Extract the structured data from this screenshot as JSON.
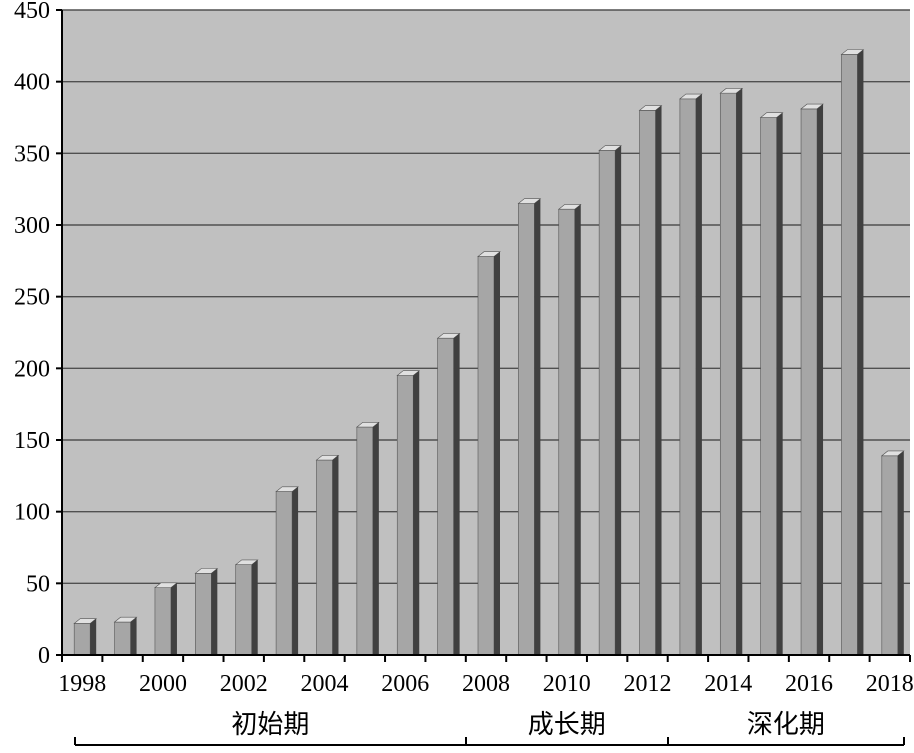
{
  "chart_data": {
    "type": "bar",
    "x": [
      1998,
      1999,
      2000,
      2001,
      2002,
      2003,
      2004,
      2005,
      2006,
      2007,
      2008,
      2009,
      2010,
      2011,
      2012,
      2013,
      2014,
      2015,
      2016,
      2017,
      2018
    ],
    "values": [
      22,
      23,
      47,
      57,
      63,
      114,
      136,
      159,
      195,
      221,
      278,
      315,
      311,
      352,
      380,
      388,
      392,
      375,
      381,
      419,
      139
    ],
    "x_tick_labels": [
      "1998",
      "2000",
      "2002",
      "2004",
      "2006",
      "2008",
      "2010",
      "2012",
      "2014",
      "2016",
      "2018"
    ],
    "y_tick_labels": [
      "0",
      "50",
      "100",
      "150",
      "200",
      "250",
      "300",
      "350",
      "400",
      "450"
    ],
    "ylim": [
      0,
      450
    ],
    "y_grid": true,
    "title": "",
    "xlabel": "",
    "ylabel": "",
    "phases": [
      {
        "label": "初始期",
        "from": 1998,
        "to": 2007
      },
      {
        "label": "成长期",
        "from": 2008,
        "to": 2012
      },
      {
        "label": "深化期",
        "from": 2013,
        "to": 2018
      }
    ],
    "colors": {
      "plot_background": "#c0c0c0",
      "bar_face": "#a6a6a6",
      "bar_side": "#404040",
      "bar_top": "#e0e0e0",
      "gridline": "#505050"
    }
  }
}
